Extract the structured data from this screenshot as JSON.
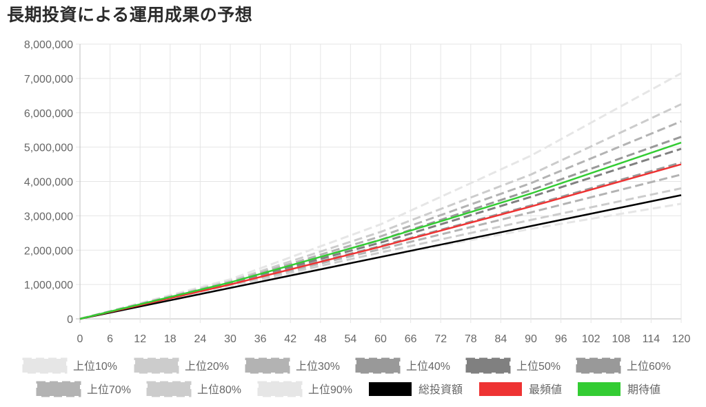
{
  "chart_data": {
    "type": "line",
    "title": "長期投資による運用成果の予想",
    "xlabel": "",
    "ylabel": "",
    "x": [
      0,
      6,
      12,
      18,
      24,
      30,
      36,
      42,
      48,
      54,
      60,
      66,
      72,
      78,
      84,
      90,
      96,
      102,
      108,
      114,
      120
    ],
    "x_range": [
      0,
      120
    ],
    "ylim": [
      0,
      8000000
    ],
    "y_ticks": [
      0,
      1000000,
      2000000,
      3000000,
      4000000,
      5000000,
      6000000,
      7000000,
      8000000
    ],
    "y_tick_labels": [
      "0",
      "1,000,000",
      "2,000,000",
      "3,000,000",
      "4,000,000",
      "5,000,000",
      "6,000,000",
      "7,000,000",
      "8,000,000"
    ],
    "grid": true,
    "legend_position": "bottom",
    "series": [
      {
        "name": "上位10%",
        "color": "#e6e6e6",
        "style": "dashed",
        "x": [
          0,
          30,
          60,
          90,
          120
        ],
        "values": [
          0,
          1150000,
          2750000,
          4750000,
          7150000
        ]
      },
      {
        "name": "上位20%",
        "color": "#cccccc",
        "style": "dashed",
        "x": [
          0,
          30,
          60,
          90,
          120
        ],
        "values": [
          0,
          1100000,
          2530000,
          4200000,
          6250000
        ]
      },
      {
        "name": "上位30%",
        "color": "#b3b3b3",
        "style": "dashed",
        "x": [
          0,
          30,
          60,
          90,
          120
        ],
        "values": [
          0,
          1070000,
          2400000,
          3950000,
          5750000
        ]
      },
      {
        "name": "上位40%",
        "color": "#999999",
        "style": "dashed",
        "x": [
          0,
          30,
          60,
          90,
          120
        ],
        "values": [
          0,
          1050000,
          2300000,
          3750000,
          5300000
        ]
      },
      {
        "name": "上位50%",
        "color": "#808080",
        "style": "dashed",
        "x": [
          0,
          30,
          60,
          90,
          120
        ],
        "values": [
          0,
          1030000,
          2220000,
          3550000,
          4950000
        ]
      },
      {
        "name": "上位60%",
        "color": "#999999",
        "style": "dashed",
        "x": [
          0,
          30,
          60,
          90,
          120
        ],
        "values": [
          0,
          1010000,
          2120000,
          3300000,
          4550000
        ]
      },
      {
        "name": "上位70%",
        "color": "#b3b3b3",
        "style": "dashed",
        "x": [
          0,
          30,
          60,
          90,
          120
        ],
        "values": [
          0,
          990000,
          2030000,
          3100000,
          4200000
        ]
      },
      {
        "name": "上位80%",
        "color": "#cccccc",
        "style": "dashed",
        "x": [
          0,
          30,
          60,
          90,
          120
        ],
        "values": [
          0,
          960000,
          1930000,
          2880000,
          3800000
        ]
      },
      {
        "name": "上位90%",
        "color": "#e6e6e6",
        "style": "dashed",
        "x": [
          0,
          30,
          60,
          90,
          120
        ],
        "values": [
          0,
          930000,
          1800000,
          2620000,
          3350000
        ]
      },
      {
        "name": "総投資額",
        "color": "#000000",
        "style": "solid",
        "x": [
          0,
          120
        ],
        "values": [
          0,
          3600000
        ]
      },
      {
        "name": "最頻値",
        "color": "#ee3333",
        "style": "solid",
        "x": [
          0,
          30,
          60,
          90,
          120
        ],
        "values": [
          0,
          1000000,
          2100000,
          3270000,
          4500000
        ]
      },
      {
        "name": "期待値",
        "color": "#33cc33",
        "style": "solid",
        "x": [
          0,
          30,
          60,
          90,
          120
        ],
        "values": [
          0,
          1060000,
          2300000,
          3650000,
          5130000
        ]
      }
    ]
  }
}
